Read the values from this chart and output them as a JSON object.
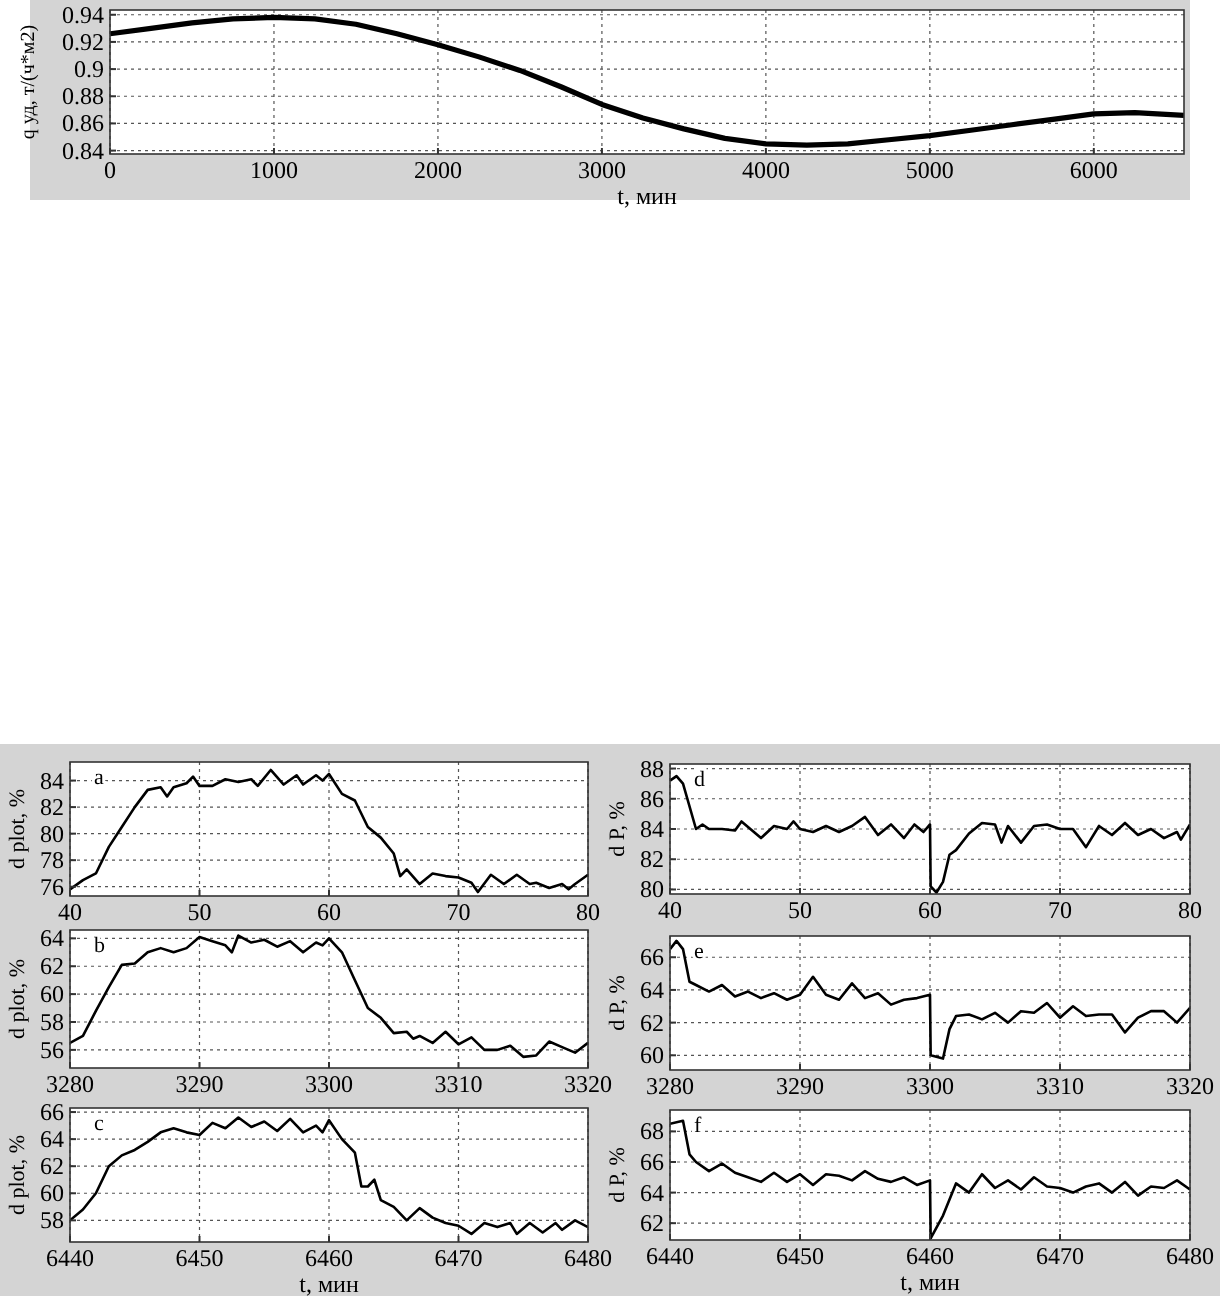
{
  "chart_data": [
    {
      "type": "line",
      "xlabel": "t, мин",
      "ylabel": "q уд, т/(ч*м2)",
      "xlim": [
        0,
        6550
      ],
      "ylim": [
        0.8375,
        0.9435
      ],
      "xticks": [
        0,
        1000,
        2000,
        3000,
        4000,
        5000,
        6000
      ],
      "yticks": [
        0.84,
        0.86,
        0.88,
        {
          "value": 0.9,
          "label": "0.9"
        },
        0.92,
        0.94
      ],
      "grid": true,
      "marker": "none",
      "line_style": "solid",
      "series": [
        {
          "color": "#000000",
          "x": [
            0,
            250,
            500,
            750,
            1000,
            1250,
            1500,
            1750,
            2000,
            2250,
            2500,
            2750,
            3000,
            3250,
            3500,
            3750,
            4000,
            4250,
            4500,
            4750,
            5000,
            5250,
            5500,
            5750,
            6000,
            6250,
            6550
          ],
          "values": [
            0.926,
            0.93,
            0.934,
            0.937,
            0.938,
            0.937,
            0.933,
            0.926,
            0.918,
            0.909,
            0.899,
            0.887,
            0.874,
            0.864,
            0.856,
            0.849,
            0.845,
            0.844,
            0.845,
            0.848,
            0.851,
            0.855,
            0.859,
            0.863,
            0.867,
            0.868,
            0.866
          ]
        }
      ]
    },
    {
      "type": "line",
      "ylabel": "d plot, %",
      "annotations": [
        "a"
      ],
      "xlim": [
        40,
        80
      ],
      "ylim": [
        75.3,
        85.4
      ],
      "xticks": [
        40,
        50,
        60,
        70,
        80
      ],
      "yticks": [
        76,
        78,
        80,
        82,
        84
      ],
      "grid": true,
      "marker": "none",
      "line_style": "solid",
      "series": [
        {
          "color": "#000000",
          "x": [
            40,
            41,
            42,
            43,
            44,
            45,
            46,
            47,
            47.5,
            48,
            49,
            49.5,
            50,
            51,
            52,
            53,
            54,
            54.5,
            55.5,
            56.5,
            57.5,
            58,
            59,
            59.5,
            60,
            61,
            62,
            63,
            64,
            65,
            65.5,
            66,
            67,
            68,
            69,
            70,
            71,
            71.5,
            72.5,
            73.5,
            74.5,
            75.5,
            76,
            77,
            78,
            78.5,
            79,
            80
          ],
          "values": [
            75.8,
            76.5,
            77,
            79,
            80.5,
            82,
            83.3,
            83.5,
            82.8,
            83.5,
            83.8,
            84.3,
            83.6,
            83.6,
            84.1,
            83.9,
            84.1,
            83.6,
            84.8,
            83.7,
            84.4,
            83.7,
            84.4,
            84,
            84.5,
            83,
            82.5,
            80.5,
            79.7,
            78.5,
            76.8,
            77.3,
            76.2,
            77,
            76.8,
            76.7,
            76.3,
            75.6,
            76.9,
            76.2,
            76.9,
            76.2,
            76.3,
            75.9,
            76.2,
            75.8,
            76.2,
            76.9
          ]
        }
      ]
    },
    {
      "type": "line",
      "ylabel": "d plot, %",
      "annotations": [
        "b"
      ],
      "xlim": [
        3280,
        3320
      ],
      "ylim": [
        54.7,
        64.6
      ],
      "xticks": [
        3280,
        3290,
        3300,
        3310,
        3320
      ],
      "yticks": [
        56,
        58,
        60,
        62,
        64
      ],
      "grid": true,
      "marker": "none",
      "line_style": "solid",
      "series": [
        {
          "color": "#000000",
          "x": [
            3280,
            3281,
            3282,
            3283,
            3284,
            3285,
            3286,
            3287,
            3288,
            3289,
            3290,
            3291,
            3292,
            3292.5,
            3293,
            3294,
            3295,
            3296,
            3297,
            3298,
            3299,
            3299.5,
            3300,
            3301,
            3302,
            3303,
            3304,
            3305,
            3306,
            3306.5,
            3307,
            3308,
            3309,
            3310,
            3311,
            3312,
            3313,
            3314,
            3315,
            3316,
            3317,
            3318,
            3319,
            3320
          ],
          "values": [
            56.5,
            57,
            58.8,
            60.5,
            62.1,
            62.2,
            63,
            63.3,
            63,
            63.3,
            64.1,
            63.8,
            63.5,
            63,
            64.2,
            63.7,
            63.9,
            63.4,
            63.8,
            63,
            63.7,
            63.5,
            64,
            63,
            61,
            59,
            58.3,
            57.2,
            57.3,
            56.8,
            57,
            56.5,
            57.3,
            56.4,
            56.9,
            56,
            56,
            56.3,
            55.5,
            55.6,
            56.6,
            56.2,
            55.8,
            56.5
          ]
        }
      ]
    },
    {
      "type": "line",
      "xlabel": "t, мин",
      "ylabel": "d plot, %",
      "annotations": [
        "c"
      ],
      "xlim": [
        6440,
        6480
      ],
      "ylim": [
        56.4,
        66.3
      ],
      "xticks": [
        6440,
        6450,
        6460,
        6470,
        6480
      ],
      "yticks": [
        58,
        60,
        62,
        64,
        66
      ],
      "grid": true,
      "marker": "none",
      "line_style": "solid",
      "series": [
        {
          "color": "#000000",
          "x": [
            6440,
            6441,
            6442,
            6443,
            6444,
            6445,
            6446,
            6447,
            6448,
            6449,
            6450,
            6451,
            6452,
            6453,
            6454,
            6455,
            6456,
            6457,
            6458,
            6459,
            6459.5,
            6460,
            6461,
            6462,
            6462.5,
            6463,
            6463.5,
            6464,
            6465,
            6466,
            6467,
            6468,
            6469,
            6470,
            6471,
            6472,
            6473,
            6474,
            6474.5,
            6475.5,
            6476.5,
            6477.5,
            6478,
            6479,
            6480
          ],
          "values": [
            58,
            58.8,
            60,
            62,
            62.8,
            63.2,
            63.8,
            64.5,
            64.8,
            64.5,
            64.3,
            65.2,
            64.8,
            65.6,
            64.9,
            65.3,
            64.6,
            65.5,
            64.5,
            65,
            64.5,
            65.4,
            64,
            63,
            60.5,
            60.5,
            61,
            59.5,
            59,
            58,
            58.9,
            58.2,
            57.8,
            57.6,
            57,
            57.8,
            57.5,
            57.8,
            57,
            57.8,
            57.1,
            57.8,
            57.3,
            58,
            57.5
          ]
        }
      ]
    },
    {
      "type": "line",
      "ylabel": "d P, %",
      "annotations": [
        "d"
      ],
      "xlim": [
        40,
        80
      ],
      "ylim": [
        79.7,
        88.3
      ],
      "xticks": [
        40,
        50,
        60,
        70,
        80
      ],
      "yticks": [
        80,
        82,
        84,
        86,
        88
      ],
      "grid": true,
      "marker": "none",
      "line_style": "solid",
      "series": [
        {
          "color": "#000000",
          "x": [
            40,
            40.5,
            41,
            42,
            42.5,
            43,
            44,
            45,
            45.5,
            47,
            48,
            49,
            49.5,
            50,
            51,
            52,
            53,
            54,
            55,
            56,
            57,
            58,
            58.8,
            59.5,
            60,
            60.05,
            60.5,
            61,
            61.5,
            62,
            63,
            64,
            65,
            65.5,
            66,
            67,
            68,
            69,
            70,
            71,
            72,
            73,
            74,
            75,
            76,
            77,
            78,
            79,
            79.3,
            80
          ],
          "values": [
            87.2,
            87.5,
            87,
            84,
            84.3,
            84,
            84,
            83.9,
            84.5,
            83.4,
            84.2,
            84,
            84.5,
            84,
            83.8,
            84.2,
            83.8,
            84.2,
            84.8,
            83.6,
            84.3,
            83.4,
            84.3,
            83.8,
            84.3,
            80.2,
            79.8,
            80.5,
            82.3,
            82.6,
            83.7,
            84.4,
            84.3,
            83.1,
            84.2,
            83.1,
            84.2,
            84.3,
            84,
            84,
            82.8,
            84.2,
            83.6,
            84.4,
            83.6,
            84,
            83.4,
            83.8,
            83.3,
            84.3
          ]
        }
      ]
    },
    {
      "type": "line",
      "ylabel": "d P, %",
      "annotations": [
        "e"
      ],
      "xlim": [
        3280,
        3320
      ],
      "ylim": [
        59.1,
        67.3
      ],
      "xticks": [
        3280,
        3290,
        3300,
        3310,
        3320
      ],
      "yticks": [
        60,
        62,
        64,
        66
      ],
      "grid": true,
      "marker": "none",
      "line_style": "solid",
      "series": [
        {
          "color": "#000000",
          "x": [
            3280,
            3280.5,
            3281,
            3281.5,
            3282,
            3283,
            3284,
            3285,
            3286,
            3287,
            3288,
            3289,
            3290,
            3291,
            3292,
            3293,
            3294,
            3295,
            3296,
            3297,
            3298,
            3299,
            3300,
            3300.05,
            3301,
            3301.5,
            3302,
            3303,
            3304,
            3305,
            3306,
            3307,
            3308,
            3309,
            3310,
            3311,
            3312,
            3313,
            3314,
            3315,
            3316,
            3317,
            3318,
            3319,
            3320
          ],
          "values": [
            66.5,
            67,
            66.5,
            64.5,
            64.3,
            63.9,
            64.3,
            63.6,
            63.9,
            63.5,
            63.8,
            63.4,
            63.7,
            64.8,
            63.7,
            63.4,
            64.4,
            63.5,
            63.8,
            63.1,
            63.4,
            63.5,
            63.7,
            60,
            59.8,
            61.6,
            62.4,
            62.5,
            62.2,
            62.6,
            62,
            62.7,
            62.6,
            63.2,
            62.3,
            63,
            62.4,
            62.5,
            62.5,
            61.4,
            62.3,
            62.7,
            62.7,
            62,
            62.9
          ]
        }
      ]
    },
    {
      "type": "line",
      "xlabel": "t, мин",
      "ylabel": "d P, %",
      "annotations": [
        "f"
      ],
      "xlim": [
        6440,
        6480
      ],
      "ylim": [
        60.9,
        69.4
      ],
      "xticks": [
        6440,
        6450,
        6460,
        6470,
        6480
      ],
      "yticks": [
        62,
        64,
        66,
        68
      ],
      "grid": true,
      "marker": "none",
      "line_style": "solid",
      "series": [
        {
          "color": "#000000",
          "x": [
            6440,
            6441,
            6441.5,
            6442,
            6443,
            6444,
            6445,
            6446,
            6447,
            6448,
            6449,
            6450,
            6451,
            6452,
            6453,
            6454,
            6455,
            6456,
            6457,
            6458,
            6459,
            6460,
            6460.05,
            6461,
            6462,
            6463,
            6464,
            6465,
            6466,
            6467,
            6468,
            6469,
            6470,
            6471,
            6472,
            6473,
            6474,
            6475,
            6476,
            6477,
            6478,
            6479,
            6480
          ],
          "values": [
            68.5,
            68.7,
            66.5,
            66,
            65.4,
            65.9,
            65.3,
            65,
            64.7,
            65.3,
            64.7,
            65.2,
            64.5,
            65.2,
            65.1,
            64.8,
            65.4,
            64.9,
            64.7,
            65,
            64.5,
            64.8,
            61,
            62.5,
            64.6,
            64,
            65.2,
            64.3,
            64.8,
            64.2,
            65,
            64.4,
            64.3,
            64,
            64.4,
            64.6,
            64,
            64.7,
            63.8,
            64.4,
            64.3,
            64.8,
            64.2
          ]
        }
      ]
    }
  ]
}
